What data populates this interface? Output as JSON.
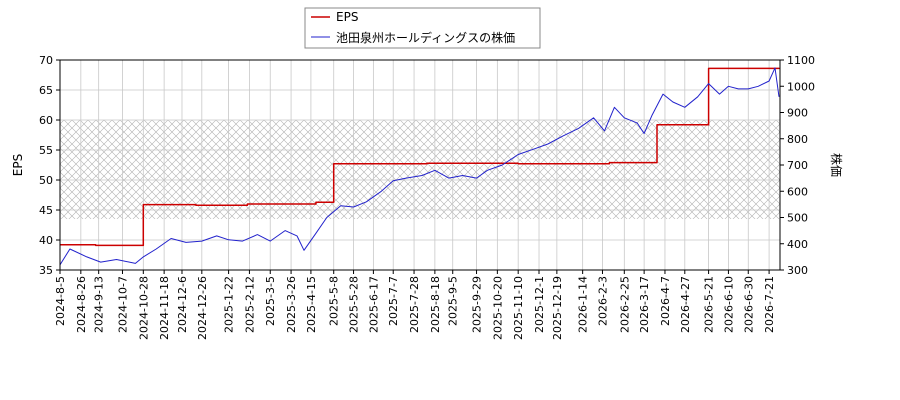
{
  "chart_data": {
    "type": "line",
    "xlabel": "",
    "ylabel_left": "EPS",
    "ylabel_right": "株価",
    "ylim_left": [
      35,
      70
    ],
    "ylim_right": [
      300,
      1100
    ],
    "yticks_left": [
      35,
      40,
      45,
      50,
      55,
      60,
      65,
      70
    ],
    "yticks_right": [
      300,
      400,
      500,
      600,
      700,
      800,
      900,
      1000,
      1100
    ],
    "xlim": [
      "2024-08-05",
      "2026-08-01"
    ],
    "x_ticks": [
      "2024-8-5",
      "2024-8-26",
      "2024-9-13",
      "2024-10-7",
      "2024-10-28",
      "2024-11-18",
      "2024-12-6",
      "2024-12-26",
      "2025-1-22",
      "2025-2-12",
      "2025-3-5",
      "2025-3-26",
      "2025-4-15",
      "2025-5-8",
      "2025-5-28",
      "2025-6-17",
      "2025-7-7",
      "2025-7-28",
      "2025-8-18",
      "2025-9-5",
      "2025-9-29",
      "2025-10-20",
      "2025-11-10",
      "2025-12-1",
      "2025-12-19",
      "2026-1-14",
      "2026-2-3",
      "2026-2-25",
      "2026-3-17",
      "2026-4-7",
      "2026-4-27",
      "2026-5-21",
      "2026-6-10",
      "2026-6-30",
      "2026-7-21"
    ],
    "grid": true,
    "legend_placement": "top-center",
    "hatched_band_left": [
      43.5,
      60
    ],
    "series": [
      {
        "name": "EPS",
        "axis": "left",
        "color": "#cc0000",
        "step": true,
        "x": [
          "2024-08-05",
          "2024-09-10",
          "2024-10-28",
          "2024-12-20",
          "2025-02-10",
          "2025-04-20",
          "2025-05-08",
          "2025-08-10",
          "2025-11-10",
          "2026-02-10",
          "2026-03-30",
          "2026-05-21",
          "2026-07-31"
        ],
        "values": [
          39.2,
          39.1,
          45.9,
          45.8,
          46.0,
          46.3,
          52.7,
          52.8,
          52.7,
          52.9,
          59.2,
          68.6,
          68.7
        ]
      },
      {
        "name": "池田泉州ホールディングスの株価",
        "axis": "right",
        "color": "#2222cc",
        "x": [
          "2024-08-05",
          "2024-08-15",
          "2024-09-01",
          "2024-09-15",
          "2024-10-01",
          "2024-10-20",
          "2024-10-28",
          "2024-11-10",
          "2024-11-25",
          "2024-12-10",
          "2024-12-26",
          "2025-01-10",
          "2025-01-22",
          "2025-02-05",
          "2025-02-20",
          "2025-03-05",
          "2025-03-20",
          "2025-04-01",
          "2025-04-08",
          "2025-04-20",
          "2025-05-01",
          "2025-05-15",
          "2025-05-28",
          "2025-06-10",
          "2025-06-25",
          "2025-07-07",
          "2025-07-20",
          "2025-08-05",
          "2025-08-18",
          "2025-09-01",
          "2025-09-15",
          "2025-09-29",
          "2025-10-10",
          "2025-10-25",
          "2025-11-10",
          "2025-11-25",
          "2025-12-10",
          "2025-12-25",
          "2026-01-10",
          "2026-01-25",
          "2026-02-05",
          "2026-02-15",
          "2026-02-25",
          "2026-03-10",
          "2026-03-17",
          "2026-03-25",
          "2026-04-05",
          "2026-04-15",
          "2026-04-27",
          "2026-05-10",
          "2026-05-21",
          "2026-06-01",
          "2026-06-10",
          "2026-06-20",
          "2026-06-30",
          "2026-07-10",
          "2026-07-21",
          "2026-07-27",
          "2026-07-31"
        ],
        "values": [
          320,
          380,
          350,
          330,
          340,
          325,
          350,
          380,
          420,
          405,
          410,
          430,
          415,
          410,
          435,
          410,
          450,
          430,
          375,
          440,
          500,
          545,
          540,
          560,
          600,
          640,
          650,
          660,
          680,
          650,
          660,
          650,
          680,
          700,
          740,
          760,
          780,
          810,
          840,
          880,
          830,
          920,
          880,
          860,
          820,
          890,
          970,
          940,
          920,
          960,
          1010,
          970,
          1000,
          990,
          990,
          1000,
          1020,
          1070,
          960
        ]
      }
    ]
  }
}
